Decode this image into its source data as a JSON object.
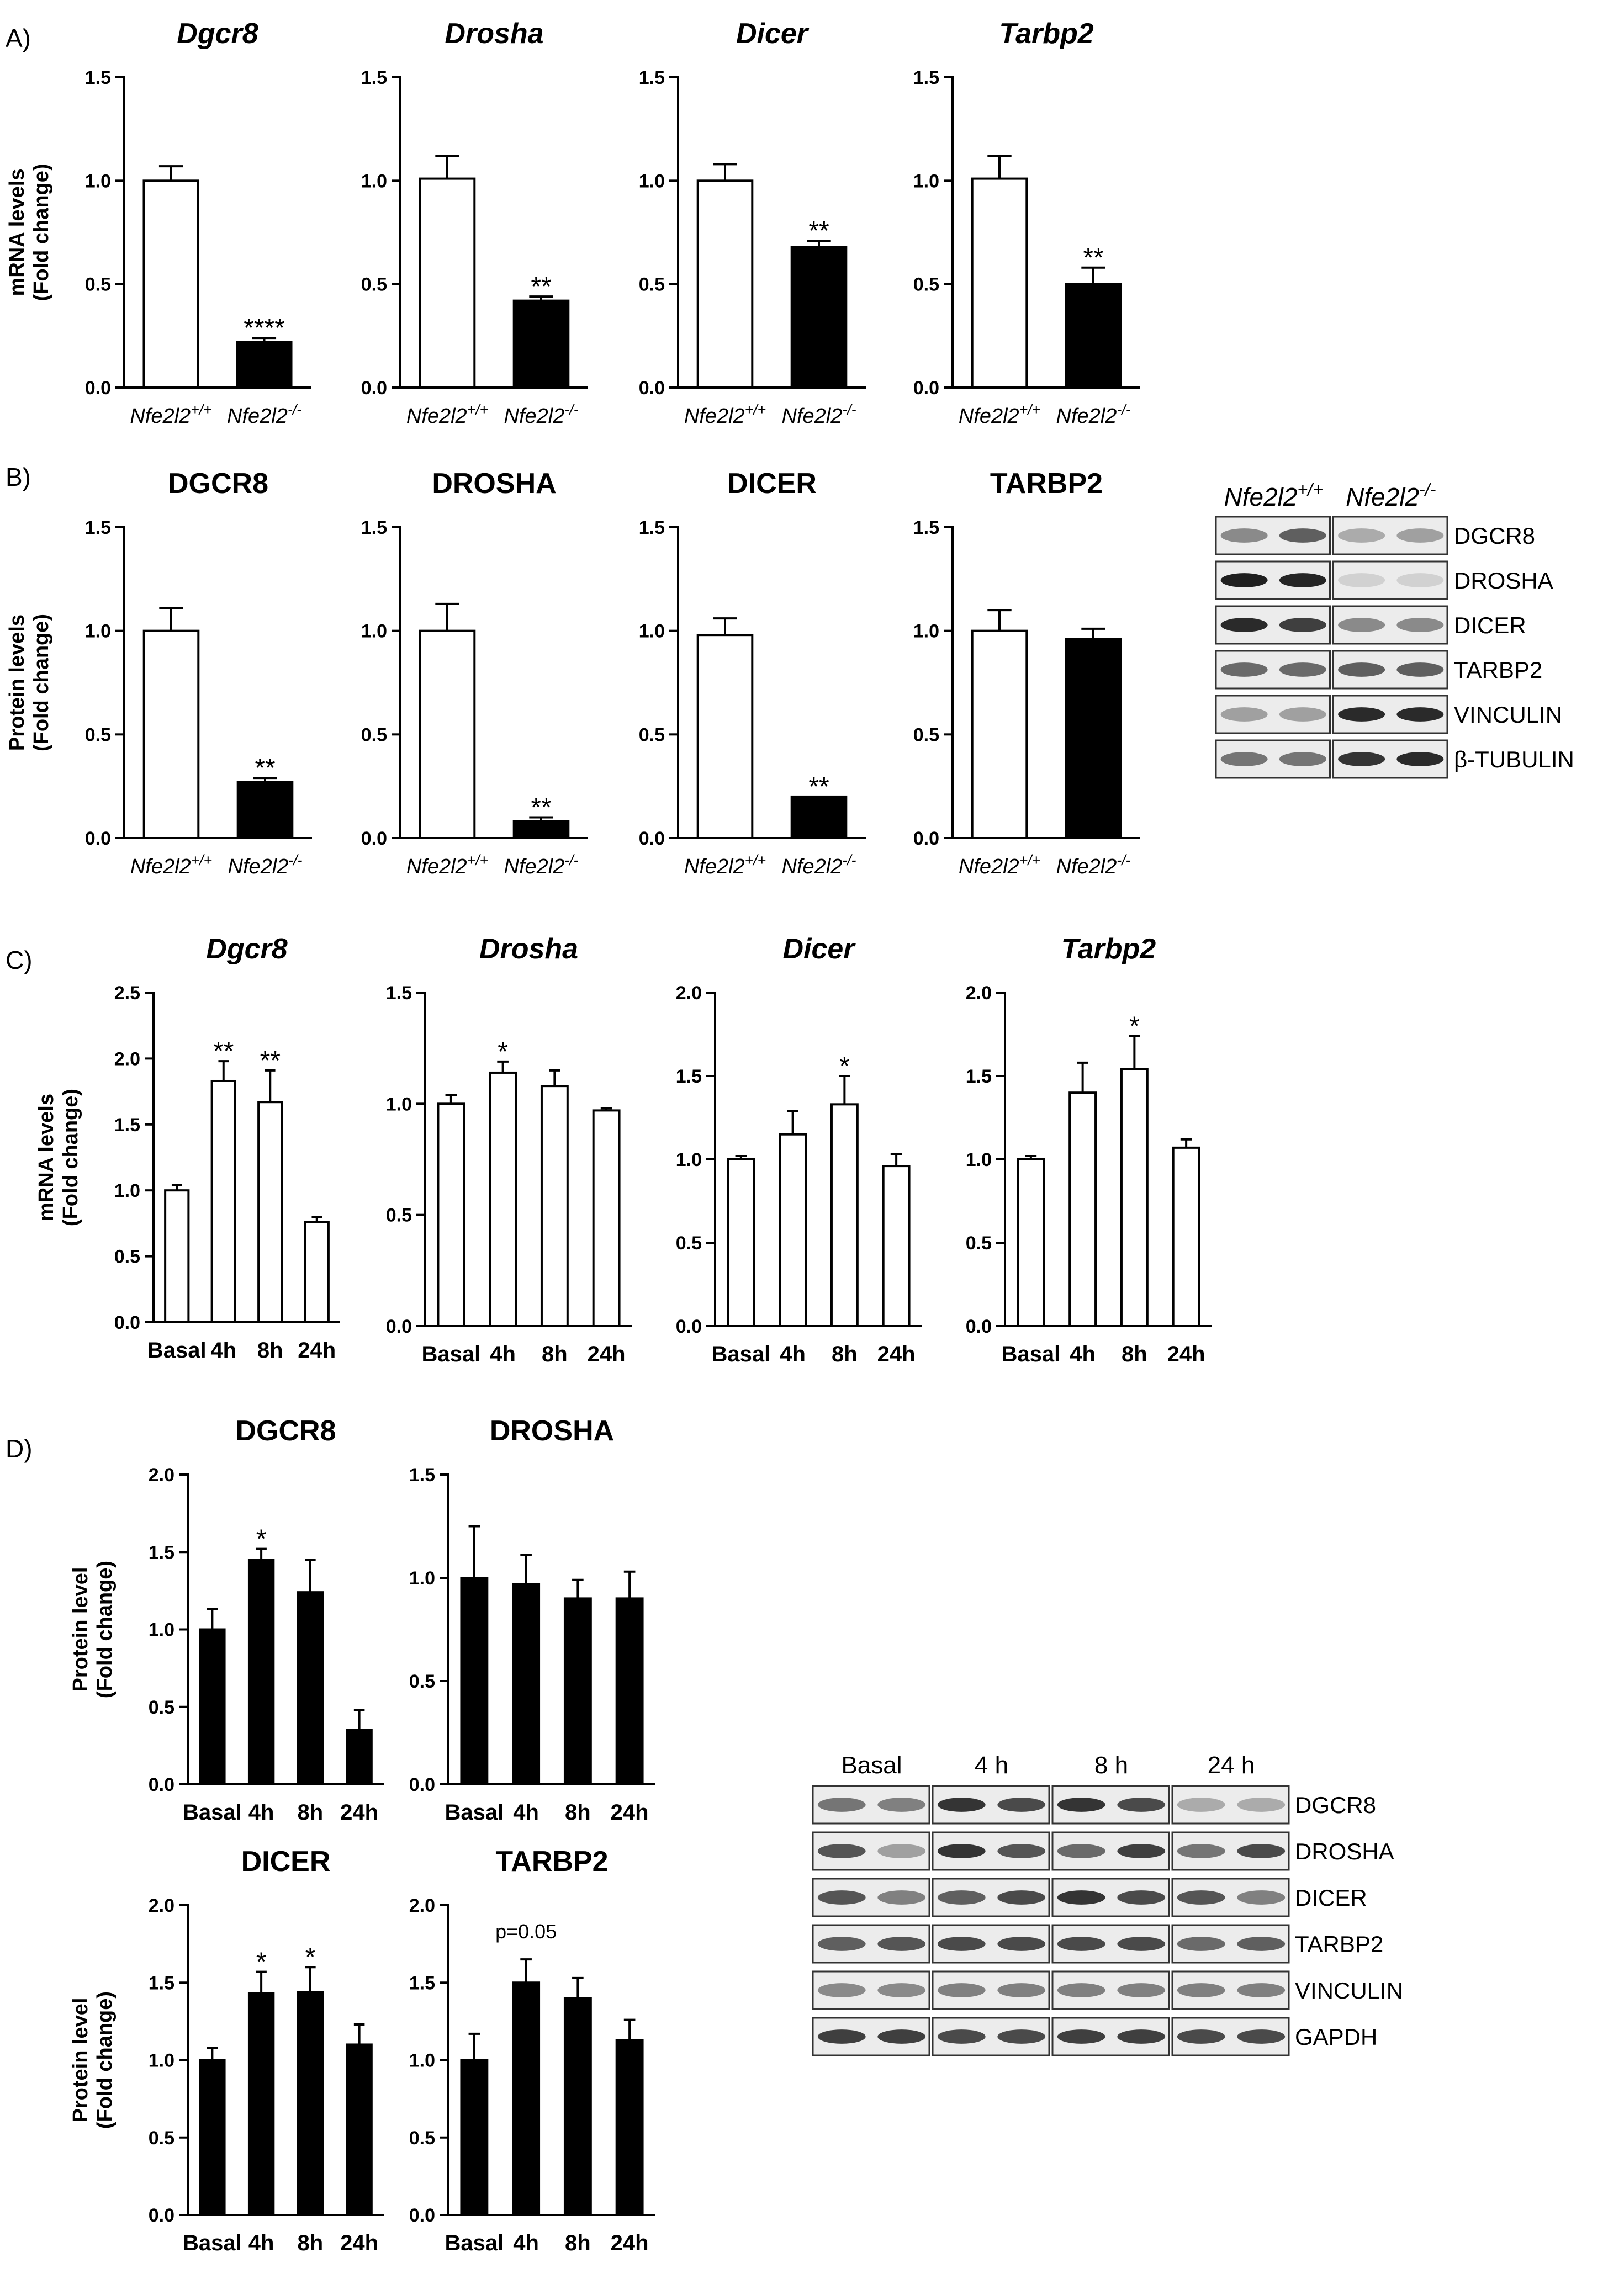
{
  "panels": [
    {
      "letter": "A)"
    },
    {
      "letter": "B)"
    },
    {
      "letter": "C)"
    },
    {
      "letter": "D)"
    }
  ],
  "chart_data": [
    {
      "panel": "A",
      "type": "bar",
      "title": "Dgcr8",
      "title_italic": true,
      "ylabel": "mRNA levels\n(Fold change)",
      "ylim": [
        0,
        1.5
      ],
      "yticks": [
        "0.0",
        "0.5",
        "1.0",
        "1.5"
      ],
      "categories": [
        "Nfe2l2+/+",
        "Nfe2l2-/-"
      ],
      "cat_italic": true,
      "values": [
        1.0,
        0.22
      ],
      "errors": [
        0.07,
        0.02
      ],
      "fills": [
        "#ffffff",
        "#000000"
      ],
      "annotations": [
        "",
        "****"
      ]
    },
    {
      "panel": "A",
      "type": "bar",
      "title": "Drosha",
      "title_italic": true,
      "ylabel": "",
      "ylim": [
        0,
        1.5
      ],
      "yticks": [
        "0.0",
        "0.5",
        "1.0",
        "1.5"
      ],
      "categories": [
        "Nfe2l2+/+",
        "Nfe2l2-/-"
      ],
      "cat_italic": true,
      "values": [
        1.01,
        0.42
      ],
      "errors": [
        0.11,
        0.02
      ],
      "fills": [
        "#ffffff",
        "#000000"
      ],
      "annotations": [
        "",
        "**"
      ]
    },
    {
      "panel": "A",
      "type": "bar",
      "title": "Dicer",
      "title_italic": true,
      "ylabel": "",
      "ylim": [
        0,
        1.5
      ],
      "yticks": [
        "0.0",
        "0.5",
        "1.0",
        "1.5"
      ],
      "categories": [
        "Nfe2l2+/+",
        "Nfe2l2-/-"
      ],
      "cat_italic": true,
      "values": [
        1.0,
        0.68
      ],
      "errors": [
        0.08,
        0.03
      ],
      "fills": [
        "#ffffff",
        "#000000"
      ],
      "annotations": [
        "",
        "**"
      ]
    },
    {
      "panel": "A",
      "type": "bar",
      "title": "Tarbp2",
      "title_italic": true,
      "ylabel": "",
      "ylim": [
        0,
        1.5
      ],
      "yticks": [
        "0.0",
        "0.5",
        "1.0",
        "1.5"
      ],
      "categories": [
        "Nfe2l2+/+",
        "Nfe2l2-/-"
      ],
      "cat_italic": true,
      "values": [
        1.01,
        0.5
      ],
      "errors": [
        0.11,
        0.08
      ],
      "fills": [
        "#ffffff",
        "#000000"
      ],
      "annotations": [
        "",
        "**"
      ]
    },
    {
      "panel": "B",
      "type": "bar",
      "title": "DGCR8",
      "title_italic": false,
      "ylabel": "Protein levels\n(Fold change)",
      "ylim": [
        0,
        1.5
      ],
      "yticks": [
        "0.0",
        "0.5",
        "1.0",
        "1.5"
      ],
      "categories": [
        "Nfe2l2+/+",
        "Nfe2l2-/-"
      ],
      "cat_italic": true,
      "values": [
        1.0,
        0.27
      ],
      "errors": [
        0.11,
        0.02
      ],
      "fills": [
        "#ffffff",
        "#000000"
      ],
      "annotations": [
        "",
        "**"
      ]
    },
    {
      "panel": "B",
      "type": "bar",
      "title": "DROSHA",
      "title_italic": false,
      "ylabel": "",
      "ylim": [
        0,
        1.5
      ],
      "yticks": [
        "0.0",
        "0.5",
        "1.0",
        "1.5"
      ],
      "categories": [
        "Nfe2l2+/+",
        "Nfe2l2-/-"
      ],
      "cat_italic": true,
      "values": [
        1.0,
        0.08
      ],
      "errors": [
        0.13,
        0.02
      ],
      "fills": [
        "#ffffff",
        "#000000"
      ],
      "annotations": [
        "",
        "**"
      ]
    },
    {
      "panel": "B",
      "type": "bar",
      "title": "DICER",
      "title_italic": false,
      "ylabel": "",
      "ylim": [
        0,
        1.5
      ],
      "yticks": [
        "0.0",
        "0.5",
        "1.0",
        "1.5"
      ],
      "categories": [
        "Nfe2l2+/+",
        "Nfe2l2-/-"
      ],
      "cat_italic": true,
      "values": [
        0.98,
        0.2
      ],
      "errors": [
        0.08,
        0.0
      ],
      "fills": [
        "#ffffff",
        "#000000"
      ],
      "annotations": [
        "",
        "**"
      ]
    },
    {
      "panel": "B",
      "type": "bar",
      "title": "TARBP2",
      "title_italic": false,
      "ylabel": "",
      "ylim": [
        0,
        1.5
      ],
      "yticks": [
        "0.0",
        "0.5",
        "1.0",
        "1.5"
      ],
      "categories": [
        "Nfe2l2+/+",
        "Nfe2l2-/-"
      ],
      "cat_italic": true,
      "values": [
        1.0,
        0.96
      ],
      "errors": [
        0.1,
        0.05
      ],
      "fills": [
        "#ffffff",
        "#000000"
      ],
      "annotations": [
        "",
        ""
      ]
    },
    {
      "panel": "C",
      "type": "bar",
      "title": "Dgcr8",
      "title_italic": true,
      "ylabel": "mRNA levels\n(Fold change)",
      "ylim": [
        0,
        2.5
      ],
      "yticks": [
        "0.0",
        "0.5",
        "1.0",
        "1.5",
        "2.0",
        "2.5"
      ],
      "categories": [
        "Basal",
        "4h",
        "8h",
        "24h"
      ],
      "cat_italic": false,
      "values": [
        1.0,
        1.83,
        1.67,
        0.76
      ],
      "errors": [
        0.04,
        0.15,
        0.24,
        0.04
      ],
      "fills": [
        "#ffffff",
        "#ffffff",
        "#ffffff",
        "#ffffff"
      ],
      "annotations": [
        "",
        "**",
        "**",
        ""
      ]
    },
    {
      "panel": "C",
      "type": "bar",
      "title": "Drosha",
      "title_italic": true,
      "ylabel": "",
      "ylim": [
        0,
        1.5
      ],
      "yticks": [
        "0.0",
        "0.5",
        "1.0",
        "1.5"
      ],
      "categories": [
        "Basal",
        "4h",
        "8h",
        "24h"
      ],
      "cat_italic": false,
      "values": [
        1.0,
        1.14,
        1.08,
        0.97
      ],
      "errors": [
        0.04,
        0.05,
        0.07,
        0.01
      ],
      "fills": [
        "#ffffff",
        "#ffffff",
        "#ffffff",
        "#ffffff"
      ],
      "annotations": [
        "",
        "*",
        "",
        ""
      ]
    },
    {
      "panel": "C",
      "type": "bar",
      "title": "Dicer",
      "title_italic": true,
      "ylabel": "",
      "ylim": [
        0,
        2.0
      ],
      "yticks": [
        "0.0",
        "0.5",
        "1.0",
        "1.5",
        "2.0"
      ],
      "categories": [
        "Basal",
        "4h",
        "8h",
        "24h"
      ],
      "cat_italic": false,
      "values": [
        1.0,
        1.15,
        1.33,
        0.96
      ],
      "errors": [
        0.02,
        0.14,
        0.17,
        0.07
      ],
      "fills": [
        "#ffffff",
        "#ffffff",
        "#ffffff",
        "#ffffff"
      ],
      "annotations": [
        "",
        "",
        "*",
        ""
      ]
    },
    {
      "panel": "C",
      "type": "bar",
      "title": "Tarbp2",
      "title_italic": true,
      "ylabel": "",
      "ylim": [
        0,
        2.0
      ],
      "yticks": [
        "0.0",
        "0.5",
        "1.0",
        "1.5",
        "2.0"
      ],
      "categories": [
        "Basal",
        "4h",
        "8h",
        "24h"
      ],
      "cat_italic": false,
      "values": [
        1.0,
        1.4,
        1.54,
        1.07
      ],
      "errors": [
        0.02,
        0.18,
        0.2,
        0.05
      ],
      "fills": [
        "#ffffff",
        "#ffffff",
        "#ffffff",
        "#ffffff"
      ],
      "annotations": [
        "",
        "",
        "*",
        ""
      ]
    },
    {
      "panel": "D",
      "type": "bar",
      "title": "DGCR8",
      "title_italic": false,
      "ylabel": "Protein level\n(Fold change)",
      "ylim": [
        0,
        2.0
      ],
      "yticks": [
        "0.0",
        "0.5",
        "1.0",
        "1.5",
        "2.0"
      ],
      "categories": [
        "Basal",
        "4h",
        "8h",
        "24h"
      ],
      "cat_italic": false,
      "values": [
        1.0,
        1.45,
        1.24,
        0.35
      ],
      "errors": [
        0.13,
        0.07,
        0.21,
        0.13
      ],
      "fills": [
        "#000000",
        "#000000",
        "#000000",
        "#000000"
      ],
      "annotations": [
        "",
        "*",
        "",
        ""
      ]
    },
    {
      "panel": "D",
      "type": "bar",
      "title": "DROSHA",
      "title_italic": false,
      "ylabel": "",
      "ylim": [
        0,
        1.5
      ],
      "yticks": [
        "0.0",
        "0.5",
        "1.0",
        "1.5"
      ],
      "categories": [
        "Basal",
        "4h",
        "8h",
        "24h"
      ],
      "cat_italic": false,
      "values": [
        1.0,
        0.97,
        0.9,
        0.9
      ],
      "errors": [
        0.25,
        0.14,
        0.09,
        0.13
      ],
      "fills": [
        "#000000",
        "#000000",
        "#000000",
        "#000000"
      ],
      "annotations": [
        "",
        "",
        "",
        ""
      ]
    },
    {
      "panel": "D",
      "type": "bar",
      "title": "DICER",
      "title_italic": false,
      "ylabel": "Protein level\n(Fold change)",
      "ylim": [
        0,
        2.0
      ],
      "yticks": [
        "0.0",
        "0.5",
        "1.0",
        "1.5",
        "2.0"
      ],
      "categories": [
        "Basal",
        "4h",
        "8h",
        "24h"
      ],
      "cat_italic": false,
      "values": [
        1.0,
        1.43,
        1.44,
        1.1
      ],
      "errors": [
        0.08,
        0.14,
        0.16,
        0.13
      ],
      "fills": [
        "#000000",
        "#000000",
        "#000000",
        "#000000"
      ],
      "annotations": [
        "",
        "*",
        "*",
        ""
      ]
    },
    {
      "panel": "D",
      "type": "bar",
      "title": "TARBP2",
      "title_italic": false,
      "ylabel": "",
      "ylim": [
        0,
        2.0
      ],
      "yticks": [
        "0.0",
        "0.5",
        "1.0",
        "1.5",
        "2.0"
      ],
      "categories": [
        "Basal",
        "4h",
        "8h",
        "24h"
      ],
      "cat_italic": false,
      "values": [
        1.0,
        1.5,
        1.4,
        1.13
      ],
      "errors": [
        0.17,
        0.15,
        0.13,
        0.13
      ],
      "fills": [
        "#000000",
        "#000000",
        "#000000",
        "#000000"
      ],
      "annotations": [
        "",
        "p=0.05",
        "",
        ""
      ]
    }
  ],
  "blots": [
    {
      "panel": "B",
      "headers": [
        "Nfe2l2+/+",
        "Nfe2l2-/-"
      ],
      "headers_italic": true,
      "rows": [
        {
          "label": "DGCR8",
          "intensity": [
            0.45,
            0.65,
            0.3,
            0.35
          ]
        },
        {
          "label": "DROSHA",
          "intensity": [
            0.95,
            0.92,
            0.12,
            0.12
          ]
        },
        {
          "label": "DICER",
          "intensity": [
            0.9,
            0.8,
            0.45,
            0.45
          ]
        },
        {
          "label": "TARBP2",
          "intensity": [
            0.6,
            0.6,
            0.65,
            0.65
          ]
        },
        {
          "label": "VINCULIN",
          "intensity": [
            0.35,
            0.35,
            0.9,
            0.9
          ]
        },
        {
          "label": "β-TUBULIN",
          "intensity": [
            0.55,
            0.55,
            0.85,
            0.9
          ]
        }
      ]
    },
    {
      "panel": "D",
      "headers": [
        "Basal",
        "4 h",
        "8 h",
        "24 h"
      ],
      "headers_italic": false,
      "rows": [
        {
          "label": "DGCR8",
          "intensity": [
            0.55,
            0.5,
            0.85,
            0.75,
            0.85,
            0.75,
            0.3,
            0.3
          ]
        },
        {
          "label": "DROSHA",
          "intensity": [
            0.7,
            0.35,
            0.85,
            0.7,
            0.6,
            0.8,
            0.55,
            0.75
          ]
        },
        {
          "label": "DICER",
          "intensity": [
            0.7,
            0.5,
            0.65,
            0.75,
            0.85,
            0.75,
            0.7,
            0.5
          ]
        },
        {
          "label": "TARBP2",
          "intensity": [
            0.65,
            0.7,
            0.75,
            0.75,
            0.75,
            0.75,
            0.6,
            0.65
          ]
        },
        {
          "label": "VINCULIN",
          "intensity": [
            0.45,
            0.45,
            0.5,
            0.5,
            0.5,
            0.5,
            0.5,
            0.5
          ]
        },
        {
          "label": "GAPDH",
          "intensity": [
            0.8,
            0.8,
            0.75,
            0.75,
            0.8,
            0.8,
            0.75,
            0.75
          ]
        }
      ]
    }
  ]
}
